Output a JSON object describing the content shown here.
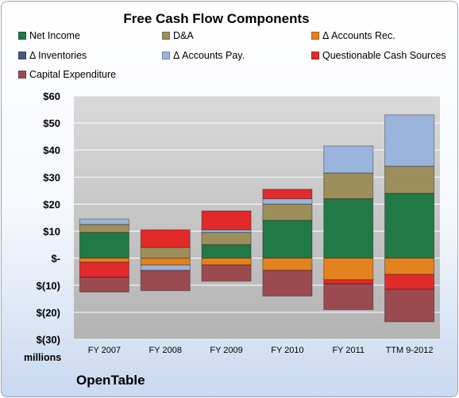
{
  "footer": {
    "company": "OpenTable"
  },
  "colors": {
    "Net Income": "#217a45",
    "D&A": "#9c8f5c",
    "Δ Accounts Rec.": "#e3821f",
    "Δ Inventories": "#3f5e7e",
    "Δ Accounts Pay.": "#9ab4dc",
    "Questionable Cash Sources": "#e22a2a",
    "Capital Expenditure": "#9b4b50"
  },
  "chart_data": {
    "type": "bar",
    "stacked": true,
    "title": "Free Cash Flow Components",
    "units_label": "millions",
    "categories": [
      "FY 2007",
      "FY 2008",
      "FY 2009",
      "FY 2010",
      "FY 2011",
      "TTM 9-2012"
    ],
    "ylim": [
      -30,
      60
    ],
    "yticks": [
      {
        "value": 60,
        "label": "$60"
      },
      {
        "value": 50,
        "label": "$50"
      },
      {
        "value": 40,
        "label": "$40"
      },
      {
        "value": 30,
        "label": "$30"
      },
      {
        "value": 20,
        "label": "$20"
      },
      {
        "value": 10,
        "label": "$10"
      },
      {
        "value": 0,
        "label": "$-"
      },
      {
        "value": -10,
        "label": "$(10)"
      },
      {
        "value": -20,
        "label": "$(20)"
      },
      {
        "value": -30,
        "label": "$(30)"
      }
    ],
    "grid": true,
    "legend_position": "top",
    "series": [
      {
        "name": "Net Income",
        "values": [
          9.5,
          0,
          5,
          14,
          22,
          24
        ]
      },
      {
        "name": "D&A",
        "values": [
          3,
          4,
          4.5,
          6,
          9.5,
          10
        ]
      },
      {
        "name": "Δ Accounts Rec.",
        "values": [
          -1.5,
          -2.5,
          -2.5,
          -4.5,
          -8,
          -6
        ]
      },
      {
        "name": "Δ Inventories",
        "values": [
          0,
          0,
          0,
          0,
          0,
          0
        ]
      },
      {
        "name": "Δ Accounts Pay.",
        "values": [
          2,
          -2,
          1,
          2,
          10,
          19
        ]
      },
      {
        "name": "Questionable Cash Sources",
        "values": [
          -5.5,
          6.5,
          7,
          3.5,
          -1.5,
          -5.5
        ]
      },
      {
        "name": "Capital Expenditure",
        "values": [
          -5.5,
          -7.5,
          -6,
          -9.5,
          -9.5,
          -12
        ]
      }
    ]
  }
}
